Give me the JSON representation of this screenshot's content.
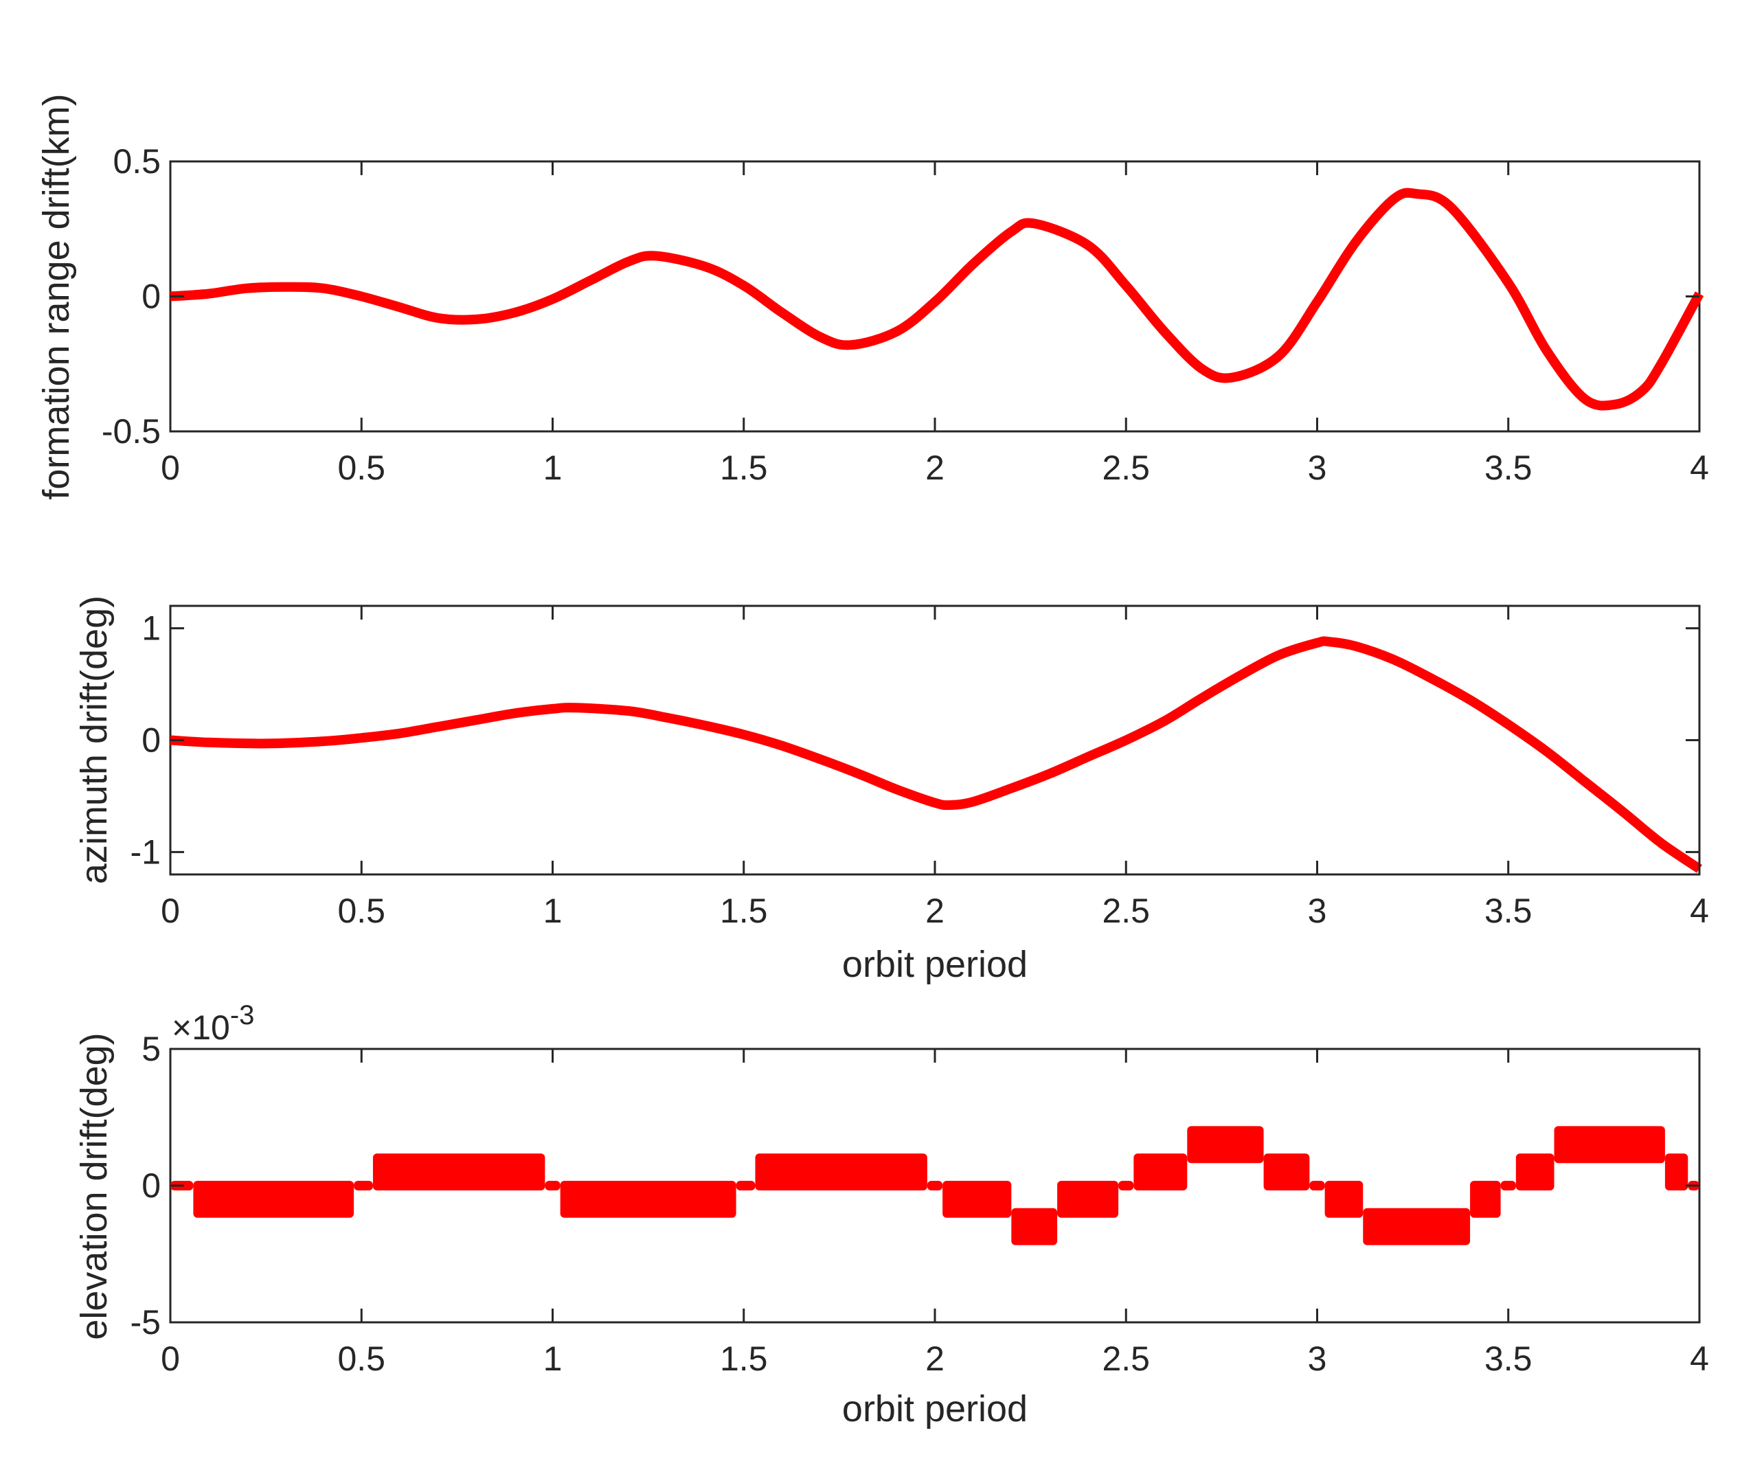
{
  "chart_data": [
    {
      "type": "line",
      "xlabel": "",
      "ylabel": "formation range drift(km)",
      "xlim": [
        0,
        4
      ],
      "ylim": [
        -0.5,
        0.5
      ],
      "xticks": [
        "0",
        "0.5",
        "1",
        "1.5",
        "2",
        "2.5",
        "3",
        "3.5",
        "4"
      ],
      "yticks": [
        "-0.5",
        "0",
        "0.5"
      ],
      "grid": false,
      "color": "#ff0000",
      "series": [
        {
          "x": [
            0,
            0.1,
            0.2,
            0.3,
            0.4,
            0.5,
            0.6,
            0.7,
            0.8,
            0.9,
            1.0,
            1.1,
            1.2,
            1.27,
            1.4,
            1.5,
            1.6,
            1.7,
            1.78,
            1.9,
            2.0,
            2.1,
            2.2,
            2.26,
            2.4,
            2.5,
            2.6,
            2.7,
            2.78,
            2.9,
            3.0,
            3.1,
            3.2,
            3.26,
            3.35,
            3.5,
            3.6,
            3.7,
            3.78,
            3.85,
            3.9,
            4.0
          ],
          "values": [
            0.0,
            0.01,
            0.03,
            0.035,
            0.03,
            0.0,
            -0.04,
            -0.08,
            -0.085,
            -0.06,
            -0.01,
            0.06,
            0.13,
            0.15,
            0.11,
            0.04,
            -0.06,
            -0.15,
            -0.18,
            -0.13,
            -0.02,
            0.12,
            0.24,
            0.27,
            0.19,
            0.04,
            -0.13,
            -0.27,
            -0.3,
            -0.22,
            -0.02,
            0.2,
            0.36,
            0.38,
            0.33,
            0.05,
            -0.2,
            -0.38,
            -0.4,
            -0.35,
            -0.25,
            0.01
          ]
        }
      ]
    },
    {
      "type": "line",
      "xlabel": "orbit period",
      "ylabel": "azimuth drift(deg)",
      "xlim": [
        0,
        4
      ],
      "ylim": [
        -1.2,
        1.2
      ],
      "xticks": [
        "0",
        "0.5",
        "1",
        "1.5",
        "2",
        "2.5",
        "3",
        "3.5",
        "4"
      ],
      "yticks": [
        "-1",
        "0",
        "1"
      ],
      "grid": false,
      "color": "#ff0000",
      "series": [
        {
          "x": [
            0,
            0.1,
            0.25,
            0.4,
            0.5,
            0.6,
            0.7,
            0.8,
            0.9,
            1.0,
            1.06,
            1.2,
            1.3,
            1.4,
            1.5,
            1.6,
            1.7,
            1.8,
            1.9,
            2.0,
            2.04,
            2.1,
            2.2,
            2.3,
            2.4,
            2.5,
            2.6,
            2.7,
            2.8,
            2.9,
            3.0,
            3.03,
            3.1,
            3.2,
            3.3,
            3.4,
            3.5,
            3.6,
            3.7,
            3.8,
            3.9,
            4.0
          ],
          "values": [
            0.0,
            -0.02,
            -0.03,
            -0.01,
            0.02,
            0.06,
            0.12,
            0.18,
            0.24,
            0.28,
            0.29,
            0.26,
            0.2,
            0.13,
            0.05,
            -0.05,
            -0.17,
            -0.3,
            -0.44,
            -0.56,
            -0.58,
            -0.55,
            -0.43,
            -0.3,
            -0.15,
            0.0,
            0.17,
            0.38,
            0.58,
            0.76,
            0.87,
            0.88,
            0.84,
            0.72,
            0.55,
            0.36,
            0.14,
            -0.1,
            -0.37,
            -0.64,
            -0.92,
            -1.15
          ]
        }
      ]
    },
    {
      "type": "line",
      "xlabel": "orbit period",
      "ylabel": "elevation drift(deg)",
      "exponent_label": "×10",
      "exponent": "-3",
      "xlim": [
        0,
        4
      ],
      "ylim": [
        -5,
        5
      ],
      "xticks": [
        "0",
        "0.5",
        "1",
        "1.5",
        "2",
        "2.5",
        "3",
        "3.5",
        "4"
      ],
      "yticks": [
        "-5",
        "0",
        "5"
      ],
      "grid": false,
      "color": "#ff0000",
      "series": [
        {
          "x_units": "orbit period",
          "y_units": "×10^-3 deg",
          "segments": [
            {
              "x": [
                0.0,
                0.06
              ],
              "lo": 0,
              "hi": 0
            },
            {
              "x": [
                0.06,
                0.48
              ],
              "lo": -1,
              "hi": 0
            },
            {
              "x": [
                0.48,
                0.53
              ],
              "lo": 0,
              "hi": 0
            },
            {
              "x": [
                0.53,
                0.98
              ],
              "lo": 0,
              "hi": 1
            },
            {
              "x": [
                0.98,
                1.02
              ],
              "lo": 0,
              "hi": 0
            },
            {
              "x": [
                1.02,
                1.48
              ],
              "lo": -1,
              "hi": 0
            },
            {
              "x": [
                1.48,
                1.53
              ],
              "lo": 0,
              "hi": 0
            },
            {
              "x": [
                1.53,
                1.98
              ],
              "lo": 0,
              "hi": 1
            },
            {
              "x": [
                1.98,
                2.02
              ],
              "lo": 0,
              "hi": 0
            },
            {
              "x": [
                2.02,
                2.2
              ],
              "lo": -1,
              "hi": 0
            },
            {
              "x": [
                2.2,
                2.32
              ],
              "lo": -2,
              "hi": -1
            },
            {
              "x": [
                2.32,
                2.48
              ],
              "lo": -1,
              "hi": 0
            },
            {
              "x": [
                2.48,
                2.52
              ],
              "lo": 0,
              "hi": 0
            },
            {
              "x": [
                2.52,
                2.66
              ],
              "lo": 0,
              "hi": 1
            },
            {
              "x": [
                2.66,
                2.86
              ],
              "lo": 1,
              "hi": 2
            },
            {
              "x": [
                2.86,
                2.98
              ],
              "lo": 0,
              "hi": 1
            },
            {
              "x": [
                2.98,
                3.02
              ],
              "lo": 0,
              "hi": 0
            },
            {
              "x": [
                3.02,
                3.12
              ],
              "lo": -1,
              "hi": 0
            },
            {
              "x": [
                3.12,
                3.4
              ],
              "lo": -2,
              "hi": -1
            },
            {
              "x": [
                3.4,
                3.48
              ],
              "lo": -1,
              "hi": 0
            },
            {
              "x": [
                3.48,
                3.52
              ],
              "lo": 0,
              "hi": 0
            },
            {
              "x": [
                3.52,
                3.62
              ],
              "lo": 0,
              "hi": 1
            },
            {
              "x": [
                3.62,
                3.91
              ],
              "lo": 1,
              "hi": 2
            },
            {
              "x": [
                3.91,
                3.97
              ],
              "lo": 0,
              "hi": 1
            },
            {
              "x": [
                3.97,
                4.0
              ],
              "lo": 0,
              "hi": 0
            }
          ]
        }
      ]
    }
  ]
}
